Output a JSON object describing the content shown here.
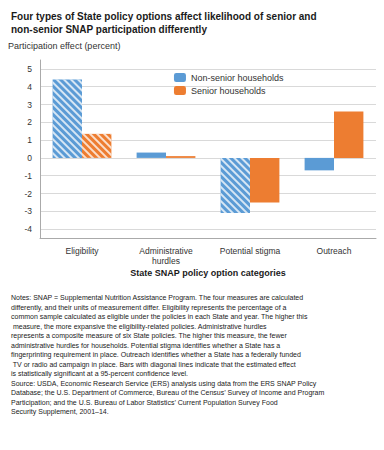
{
  "chart_data": {
    "type": "bar",
    "title": "Four types of State policy options affect likelihood of senior and\nnon-senior SNAP participation differently",
    "ylabel": "Participation effect (percent)",
    "xlabel": "State SNAP policy option categories",
    "categories": [
      "Eligibility",
      "Administrative\nhurdles",
      "Potential stigma",
      "Outreach"
    ],
    "series": [
      {
        "name": "Non-senior households",
        "color": "#5B9BD5",
        "values": [
          4.4,
          0.3,
          -3.1,
          -0.7
        ],
        "significant": [
          true,
          false,
          true,
          false
        ]
      },
      {
        "name": "Senior households",
        "color": "#ED7D31",
        "values": [
          1.35,
          0.1,
          -2.5,
          2.6
        ],
        "significant": [
          true,
          false,
          false,
          false
        ]
      }
    ],
    "ylim": [
      -4.5,
      5.5
    ],
    "yticks": [
      -4,
      -3,
      -2,
      -1,
      0,
      1,
      2,
      3,
      4,
      5
    ],
    "grid": true,
    "legend": "top",
    "notes": "Notes: SNAP = Supplemental Nutrition Assistance Program. The four measures are calculated differently, and their units of measurement differ. Eligibility represents the percentage of a common sample calculated as eligible under the policies in each State and year. The higher this measure, the more expansive the eligibility-related policies. Administrative hurdles represents a composite measure of six State policies. The higher this measure, the fewer administrative hurdles for households. Potential stigma identifies whether a State has a fingerprinting requirement in place. Outreach identifies whether a State has a federally funded TV or radio ad campaign in place. Bars with diagonal lines indicate that the estimated effect is statistically significant at a 95-percent confidence level.",
    "source": "Source: USDA, Economic Research Service (ERS) analysis using data from the ERS SNAP Policy Database; the U.S. Department of Commerce, Bureau of the Census’ Survey of Income and Program Participation; and the U.S. Bureau of Labor Statistics’ Current Population Survey Food Security Supplement, 2001–14."
  }
}
